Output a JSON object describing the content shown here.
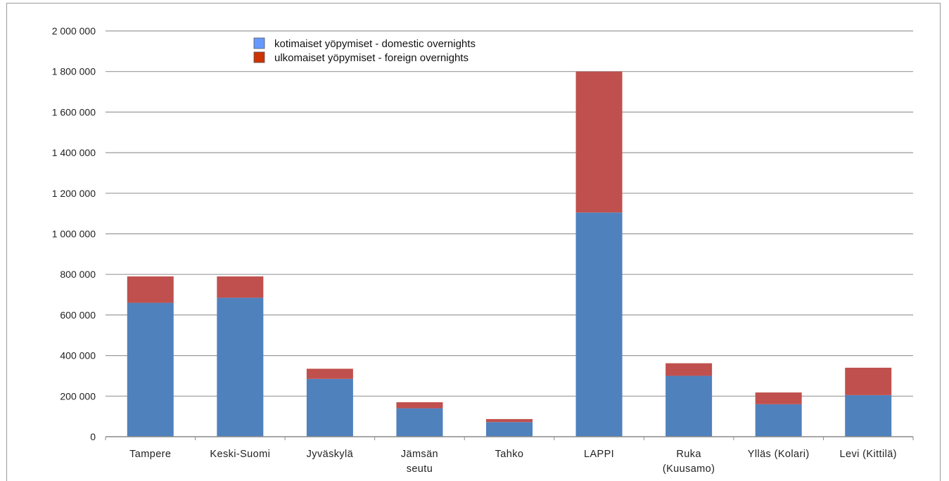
{
  "chart_data": {
    "type": "bar",
    "stacked": true,
    "categories": [
      [
        "Tampere"
      ],
      [
        "Keski-Suomi"
      ],
      [
        "Jyväskylä"
      ],
      [
        "Jämsän",
        "seutu"
      ],
      [
        "Tahko"
      ],
      [
        "LAPPI"
      ],
      [
        "Ruka",
        "(Kuusamo)"
      ],
      [
        "Ylläs (Kolari)"
      ],
      [
        "Levi (Kittilä)"
      ]
    ],
    "series": [
      {
        "name": "kotimaiset yöpymiset - domestic overnights",
        "color": "#4f81bd",
        "legend_swatch": "#6699ff",
        "values": [
          660000,
          685000,
          285000,
          140000,
          72000,
          1105000,
          300000,
          160000,
          205000
        ]
      },
      {
        "name": "ulkomaiset yöpymiset - foreign overnights",
        "color": "#c0504d",
        "legend_swatch": "#cc3300",
        "values": [
          130000,
          105000,
          50000,
          30000,
          15000,
          695000,
          62000,
          58000,
          135000
        ]
      }
    ],
    "ylim": [
      0,
      2000000
    ],
    "yticks": [
      0,
      200000,
      400000,
      600000,
      800000,
      1000000,
      1200000,
      1400000,
      1600000,
      1800000,
      2000000
    ],
    "ytick_labels": [
      "0",
      "200 000",
      "400 000",
      "600 000",
      "800 000",
      "1 000 000",
      "1 200 000",
      "1 400 000",
      "1 600 000",
      "1 800 000",
      "2 000 000"
    ],
    "grid": true,
    "legend_position": "top-left",
    "title": "",
    "xlabel": "",
    "ylabel": ""
  }
}
